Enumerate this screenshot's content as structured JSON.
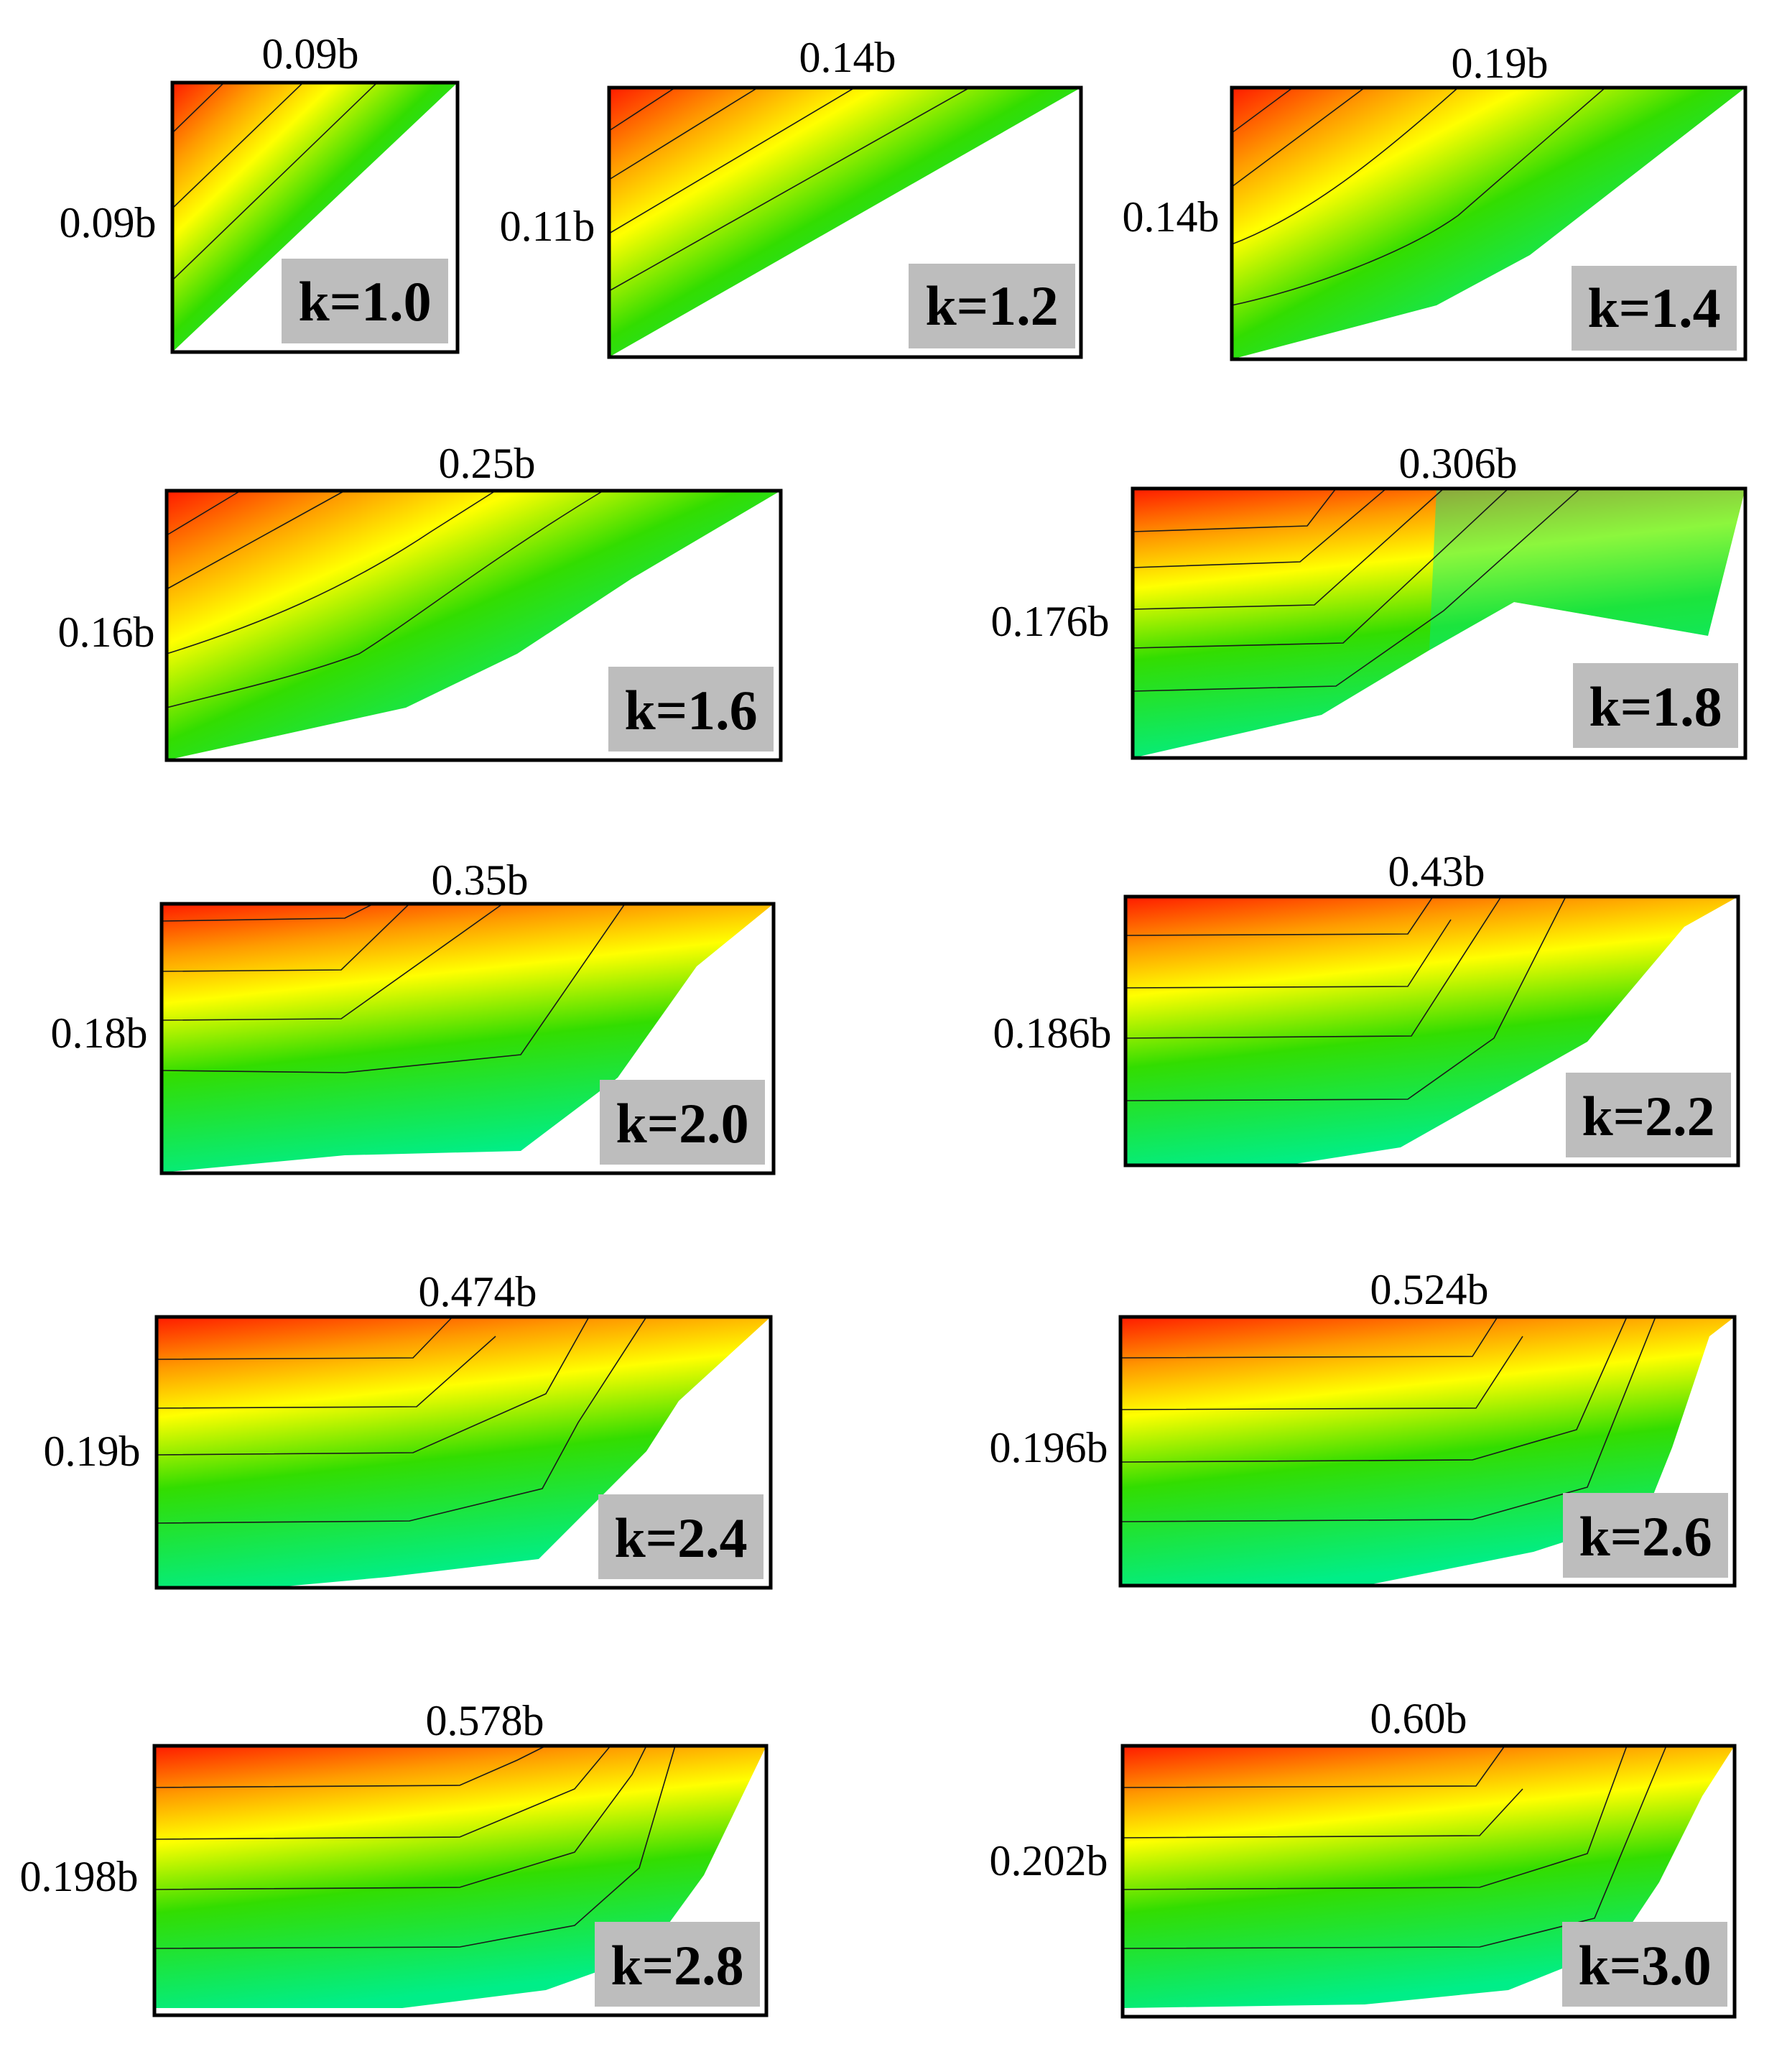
{
  "figure": {
    "panels": [
      {
        "k_label": "k=1.0",
        "width_label": "0.09b",
        "height_label": "0.09b",
        "shape": "triangle"
      },
      {
        "k_label": "k=1.2",
        "width_label": "0.14b",
        "height_label": "0.11b",
        "shape": "triangle"
      },
      {
        "k_label": "k=1.4",
        "width_label": "0.19b",
        "height_label": "0.14b",
        "shape": "curve"
      },
      {
        "k_label": "k=1.6",
        "width_label": "0.25b",
        "height_label": "0.16b",
        "shape": "curve"
      },
      {
        "k_label": "k=1.8",
        "width_label": "0.306b",
        "height_label": "0.176b",
        "shape": "notch"
      },
      {
        "k_label": "k=2.0",
        "width_label": "0.35b",
        "height_label": "0.18b",
        "shape": "plateau"
      },
      {
        "k_label": "k=2.2",
        "width_label": "0.43b",
        "height_label": "0.186b",
        "shape": "plateau"
      },
      {
        "k_label": "k=2.4",
        "width_label": "0.474b",
        "height_label": "0.19b",
        "shape": "plateau"
      },
      {
        "k_label": "k=2.6",
        "width_label": "0.524b",
        "height_label": "0.196b",
        "shape": "plateau"
      },
      {
        "k_label": "k=2.8",
        "width_label": "0.578b",
        "height_label": "0.198b",
        "shape": "plateau"
      },
      {
        "k_label": "k=3.0",
        "width_label": "0.60b",
        "height_label": "0.202b",
        "shape": "plateau"
      }
    ],
    "colors": {
      "hot": "#ff1a00",
      "orange": "#ff9a00",
      "yellow": "#ffff00",
      "green": "#33dd00",
      "cool": "#00ee88",
      "label_box": "#bdbdbd"
    }
  }
}
